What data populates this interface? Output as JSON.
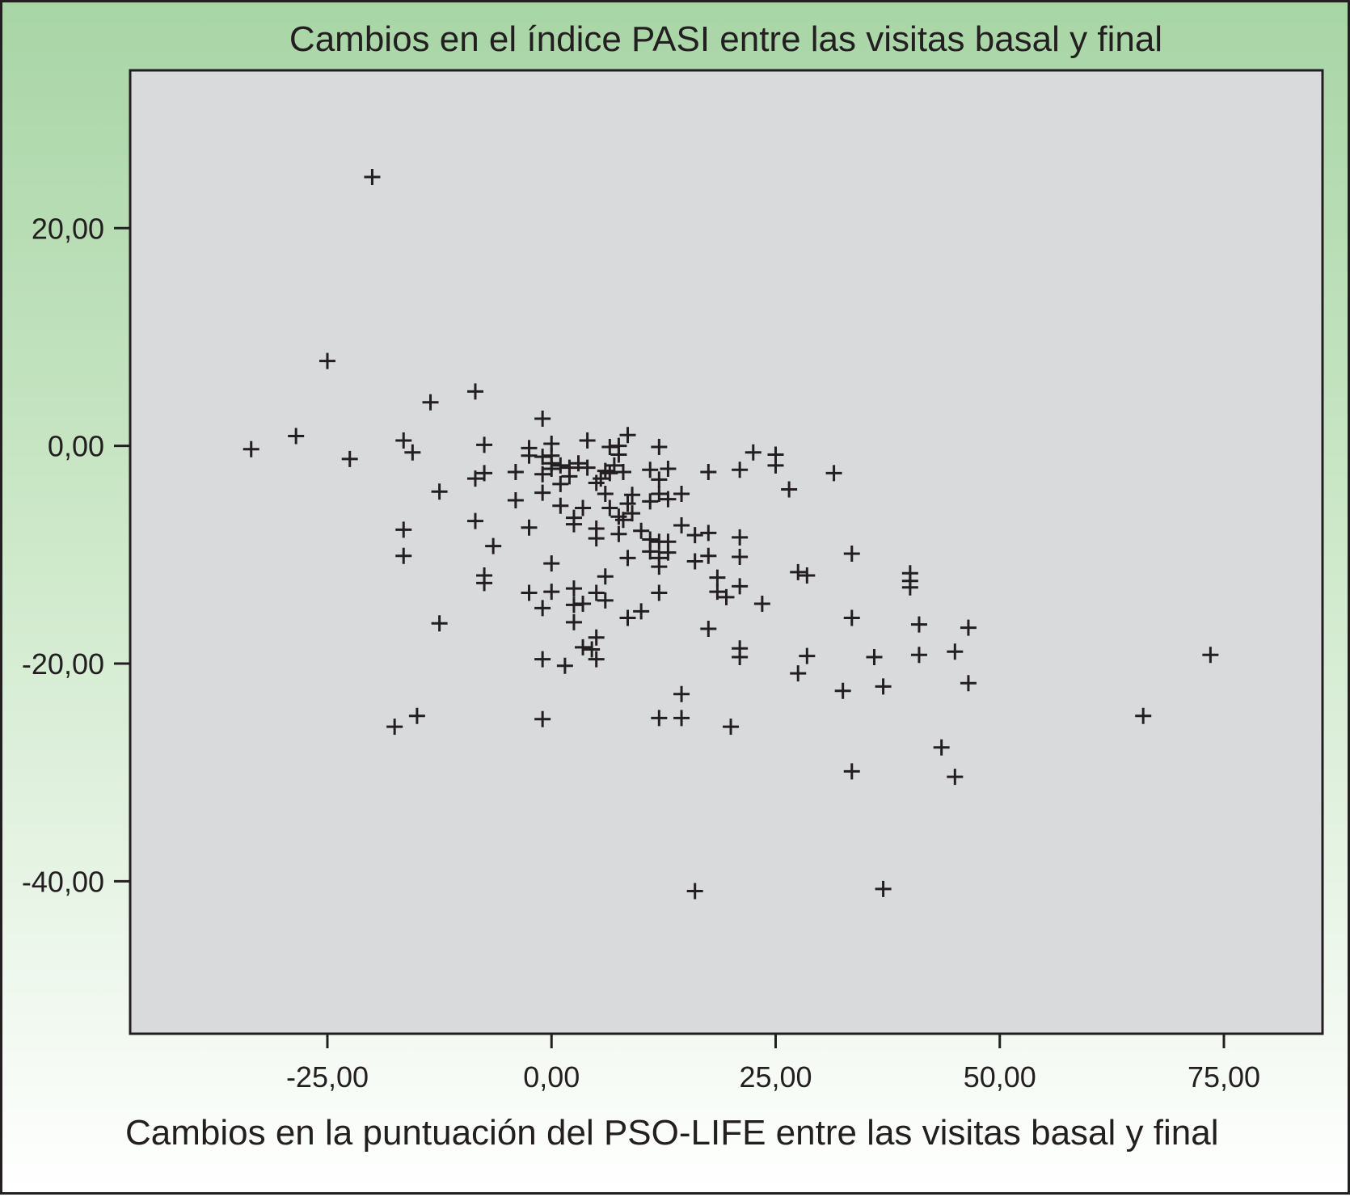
{
  "chart_data": {
    "type": "scatter",
    "title": "",
    "plot_title": "Cambios en el índice PASI entre las visitas basal y final",
    "xlabel": "Cambios en la puntuación del PSO-LIFE entre las visitas basal y final",
    "ylabel": "",
    "xlim": [
      -47,
      86
    ],
    "ylim": [
      -54,
      34.5
    ],
    "x_ticks": [
      -25,
      0,
      25,
      50,
      75
    ],
    "x_tick_labels": [
      "-25,00",
      "0,00",
      "25,00",
      "50,00",
      "75,00"
    ],
    "y_ticks": [
      20,
      0,
      -20,
      -40
    ],
    "y_tick_labels": [
      "20,00",
      "0,00",
      "-20,00",
      "-40,00"
    ],
    "grid": false,
    "marker": "+",
    "colors": {
      "background": "#a8d5a6",
      "plot_area": "#d9dadc",
      "marker": "#231f20"
    },
    "points": [
      [
        -20,
        24.7
      ],
      [
        -25,
        7.8
      ],
      [
        -13.5,
        4
      ],
      [
        -8.5,
        5
      ],
      [
        -33.5,
        -0.3
      ],
      [
        -28.5,
        0.9
      ],
      [
        -22.5,
        -1.2
      ],
      [
        -16.5,
        0.5
      ],
      [
        -15.5,
        -0.6
      ],
      [
        -12.5,
        -4.2
      ],
      [
        -16.5,
        -7.7
      ],
      [
        -16.5,
        -10.1
      ],
      [
        -12.5,
        -16.3
      ],
      [
        -17.5,
        -25.8
      ],
      [
        -15,
        -24.8
      ],
      [
        -8.5,
        -3
      ],
      [
        -7.5,
        -2.5
      ],
      [
        -7.5,
        0.1
      ],
      [
        -8.5,
        -6.9
      ],
      [
        -6.5,
        -9.2
      ],
      [
        -7.5,
        -11.9
      ],
      [
        -7.5,
        -12.6
      ],
      [
        -2.5,
        -0.2
      ],
      [
        -2.5,
        -0.9
      ],
      [
        -1,
        2.5
      ],
      [
        -1,
        -1
      ],
      [
        -1,
        -2.6
      ],
      [
        -1,
        -4.3
      ],
      [
        -4,
        -2.4
      ],
      [
        -4,
        -5
      ],
      [
        -2.5,
        -7.5
      ],
      [
        -2.5,
        -13.5
      ],
      [
        -1,
        -14.9
      ],
      [
        -1,
        -19.6
      ],
      [
        -1,
        -25.1
      ],
      [
        0,
        0.2
      ],
      [
        0,
        -0.9
      ],
      [
        0,
        -1.6
      ],
      [
        0,
        -2.1
      ],
      [
        0,
        -10.8
      ],
      [
        0,
        -13.4
      ],
      [
        1,
        -1.8
      ],
      [
        1,
        -3.5
      ],
      [
        1,
        -5.5
      ],
      [
        1.5,
        -20.2
      ],
      [
        2,
        -2
      ],
      [
        2,
        -2.8
      ],
      [
        2.5,
        -6.6
      ],
      [
        2.5,
        -7.2
      ],
      [
        2.5,
        -13.1
      ],
      [
        2.5,
        -14.6
      ],
      [
        2.5,
        -16.2
      ],
      [
        3,
        -1.6
      ],
      [
        3.5,
        -14.5
      ],
      [
        3.5,
        -5.7
      ],
      [
        3.5,
        -18.5
      ],
      [
        4,
        0.5
      ],
      [
        4,
        -2
      ],
      [
        4.5,
        -18.7
      ],
      [
        5,
        -3.4
      ],
      [
        5,
        -7.6
      ],
      [
        5,
        -8.5
      ],
      [
        5,
        -13.5
      ],
      [
        5,
        -17.6
      ],
      [
        5,
        -19.6
      ],
      [
        5.5,
        -3
      ],
      [
        6,
        -2.3
      ],
      [
        6,
        -4.4
      ],
      [
        6,
        -12
      ],
      [
        6,
        -14.2
      ],
      [
        6.5,
        -0.1
      ],
      [
        6.5,
        -2.5
      ],
      [
        6.5,
        -5.7
      ],
      [
        7,
        -1.8
      ],
      [
        7.5,
        0
      ],
      [
        7.5,
        -0.8
      ],
      [
        7.5,
        -6.5
      ],
      [
        7.5,
        -8.1
      ],
      [
        8,
        -2.4
      ],
      [
        8,
        -6.8
      ],
      [
        8.5,
        1
      ],
      [
        8.5,
        -5.3
      ],
      [
        8.5,
        -10.3
      ],
      [
        8.5,
        -15.8
      ],
      [
        9,
        -4.5
      ],
      [
        9,
        -6.2
      ],
      [
        10,
        -7.8
      ],
      [
        10,
        -15.2
      ],
      [
        11,
        -2.2
      ],
      [
        11,
        -5.1
      ],
      [
        11,
        -8.6
      ],
      [
        11,
        -9.7
      ],
      [
        12,
        -0.1
      ],
      [
        12,
        -3.1
      ],
      [
        12,
        -4.4
      ],
      [
        12,
        -8.8
      ],
      [
        12,
        -10.3
      ],
      [
        12,
        -11.1
      ],
      [
        12,
        -13.5
      ],
      [
        12,
        -25
      ],
      [
        13,
        -2.1
      ],
      [
        13,
        -4.9
      ],
      [
        13,
        -8.8
      ],
      [
        13,
        -9.8
      ],
      [
        14.5,
        -4.4
      ],
      [
        14.5,
        -7.3
      ],
      [
        14.5,
        -22.8
      ],
      [
        14.5,
        -25
      ],
      [
        16,
        -8.2
      ],
      [
        16,
        -10.6
      ],
      [
        16,
        -40.9
      ],
      [
        17.5,
        -2.4
      ],
      [
        17.5,
        -8
      ],
      [
        17.5,
        -10.1
      ],
      [
        17.5,
        -16.8
      ],
      [
        18.5,
        -12.1
      ],
      [
        18.5,
        -13.4
      ],
      [
        19.5,
        -13.9
      ],
      [
        20,
        -25.8
      ],
      [
        21,
        -2.2
      ],
      [
        21,
        -8.4
      ],
      [
        21,
        -10.2
      ],
      [
        21,
        -12.9
      ],
      [
        21,
        -18.6
      ],
      [
        21,
        -19.4
      ],
      [
        22.5,
        -0.6
      ],
      [
        23.5,
        -14.5
      ],
      [
        25,
        -0.8
      ],
      [
        25,
        -1.8
      ],
      [
        26.5,
        -4
      ],
      [
        27.5,
        -11.6
      ],
      [
        27.5,
        -20.9
      ],
      [
        28.5,
        -11.9
      ],
      [
        28.5,
        -19.3
      ],
      [
        31.5,
        -2.5
      ],
      [
        32.5,
        -22.5
      ],
      [
        33.5,
        -9.9
      ],
      [
        33.5,
        -15.8
      ],
      [
        33.5,
        -29.9
      ],
      [
        36,
        -19.4
      ],
      [
        37,
        -22.1
      ],
      [
        37,
        -40.7
      ],
      [
        40,
        -11.7
      ],
      [
        40,
        -12.4
      ],
      [
        40,
        -13
      ],
      [
        41,
        -16.4
      ],
      [
        41,
        -19.2
      ],
      [
        43.5,
        -27.7
      ],
      [
        45,
        -18.9
      ],
      [
        45,
        -30.4
      ],
      [
        46.5,
        -16.7
      ],
      [
        46.5,
        -21.8
      ],
      [
        66,
        -24.8
      ],
      [
        73.5,
        -19.2
      ]
    ]
  }
}
